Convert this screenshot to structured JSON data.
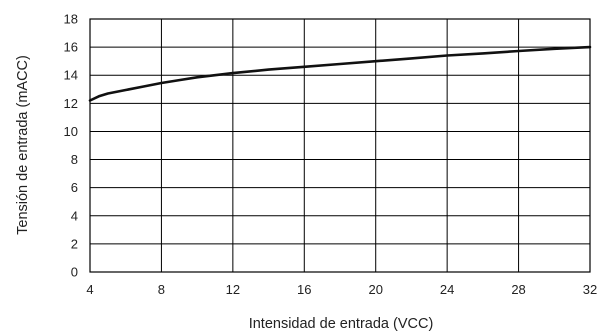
{
  "chart_data": {
    "type": "line",
    "xlabel": "Intensidad de entrada (VCC)",
    "ylabel": "Tensión de entrada (mACC)",
    "xlim": [
      4,
      32
    ],
    "ylim": [
      0,
      18
    ],
    "x_ticks": [
      4,
      8,
      12,
      16,
      20,
      24,
      28,
      32
    ],
    "y_ticks": [
      0,
      2,
      4,
      6,
      8,
      10,
      12,
      14,
      16,
      18
    ],
    "grid": true,
    "legend": "none",
    "series": [
      {
        "x": [
          4,
          4.5,
          5,
          6,
          7,
          8,
          9,
          10,
          11,
          12,
          14,
          16,
          18,
          20,
          22,
          24,
          26,
          28,
          30,
          32
        ],
        "y": [
          12.2,
          12.5,
          12.7,
          12.95,
          13.2,
          13.45,
          13.65,
          13.85,
          14.0,
          14.15,
          14.4,
          14.6,
          14.8,
          15.0,
          15.2,
          15.4,
          15.55,
          15.72,
          15.88,
          16.0
        ]
      }
    ],
    "colors": {
      "line": "#111111",
      "grid": "#000000"
    }
  }
}
